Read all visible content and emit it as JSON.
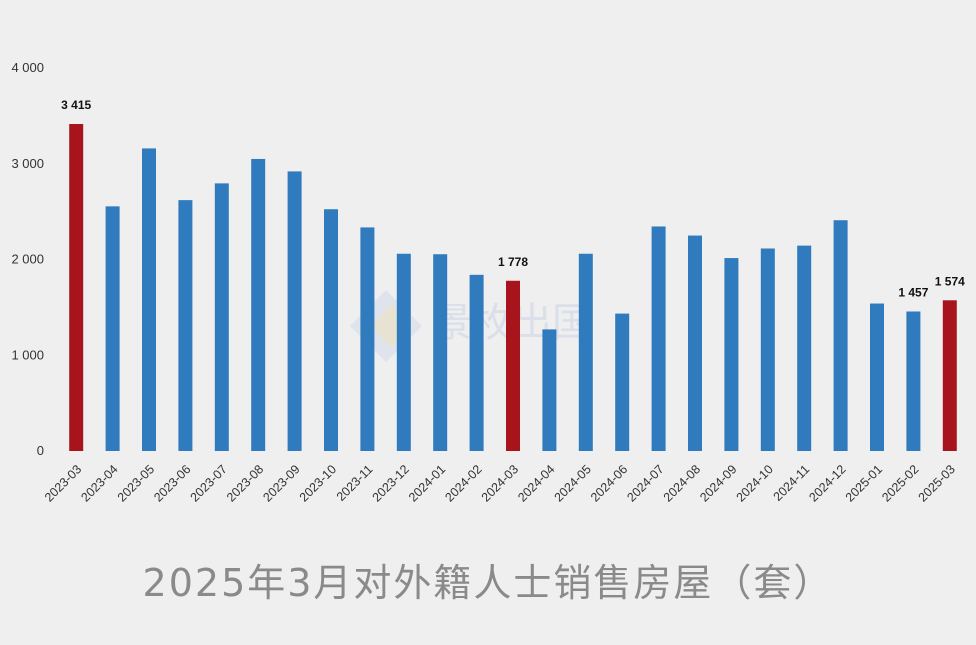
{
  "chart_data": {
    "type": "bar",
    "title": "2025年3月对外籍人士销售房屋（套）",
    "xlabel": "",
    "ylabel": "",
    "ylim": [
      0,
      4000
    ],
    "yticks": [
      0,
      1000,
      2000,
      3000,
      4000
    ],
    "ytick_labels": [
      "0",
      "1 000",
      "2 000",
      "3 000",
      "4 000"
    ],
    "grid": false,
    "legend": "none",
    "categories": [
      "2023-03",
      "2023-04",
      "2023-05",
      "2023-06",
      "2023-07",
      "2023-08",
      "2023-09",
      "2023-10",
      "2023-11",
      "2023-12",
      "2024-01",
      "2024-02",
      "2024-03",
      "2024-04",
      "2024-05",
      "2024-06",
      "2024-07",
      "2024-08",
      "2024-09",
      "2024-10",
      "2024-11",
      "2024-12",
      "2025-01",
      "2025-02",
      "2025-03"
    ],
    "values": [
      3415,
      2555,
      3160,
      2620,
      2795,
      3050,
      2920,
      2525,
      2335,
      2060,
      2055,
      1840,
      1778,
      1270,
      2060,
      1435,
      2345,
      2250,
      2015,
      2115,
      2145,
      2410,
      1540,
      1457,
      1574
    ],
    "highlight_indices": [
      0,
      12,
      24
    ],
    "data_labels": [
      {
        "index": 0,
        "text": "3 415"
      },
      {
        "index": 12,
        "text": "1 778"
      },
      {
        "index": 23,
        "text": "1 457"
      },
      {
        "index": 24,
        "text": "1 574"
      }
    ],
    "colors": {
      "normal": "#2f7bbd",
      "highlight": "#a8141c"
    }
  },
  "watermark": {
    "text": "景枚出国"
  }
}
